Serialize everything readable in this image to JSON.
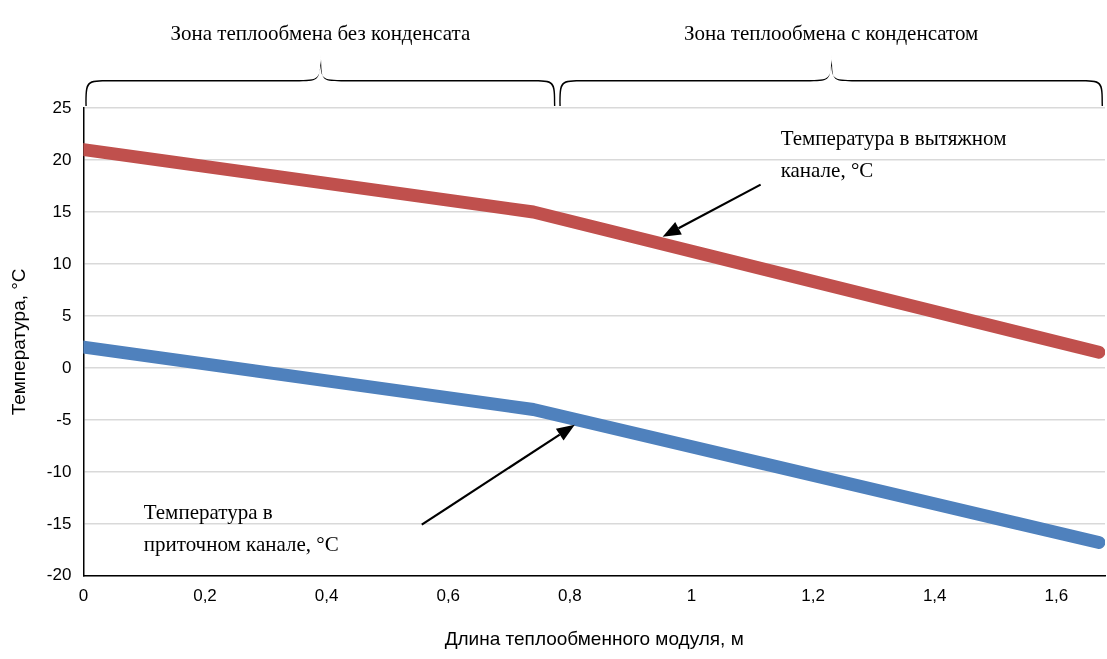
{
  "chart_data": {
    "type": "line",
    "xlabel": "Длина теплообменного модуля, м",
    "ylabel": "Температура, °C",
    "xlim": [
      0,
      1.68
    ],
    "xticks": [
      {
        "value": 0,
        "label": "0"
      },
      {
        "value": 0.2,
        "label": "0,2"
      },
      {
        "value": 0.4,
        "label": "0,4"
      },
      {
        "value": 0.6,
        "label": "0,6"
      },
      {
        "value": 0.8,
        "label": "0,8"
      },
      {
        "value": 1,
        "label": "1"
      },
      {
        "value": 1.2,
        "label": "1,2"
      },
      {
        "value": 1.4,
        "label": "1,4"
      },
      {
        "value": 1.6,
        "label": "1,6"
      }
    ],
    "ylim": [
      -20,
      25
    ],
    "yticks": [
      -20,
      -15,
      -10,
      -5,
      0,
      5,
      10,
      15,
      20,
      25
    ],
    "grid": "y",
    "legend": false,
    "marker": "none",
    "line_style": "solid",
    "series": [
      {
        "color": "#c0504d",
        "x": [
          0,
          0.74,
          1.67
        ],
        "values": [
          21,
          15,
          1.5
        ]
      },
      {
        "color": "#4f81bd",
        "x": [
          0,
          0.74,
          1.67
        ],
        "values": [
          2,
          -4,
          -16.8
        ]
      }
    ],
    "annotations": [
      "Зона теплообмена без конденсата",
      "Зона теплообмена с конденсатом",
      "Температура в вытяжном\nканале, °C",
      "Температура в\nприточном канале, °C"
    ]
  }
}
